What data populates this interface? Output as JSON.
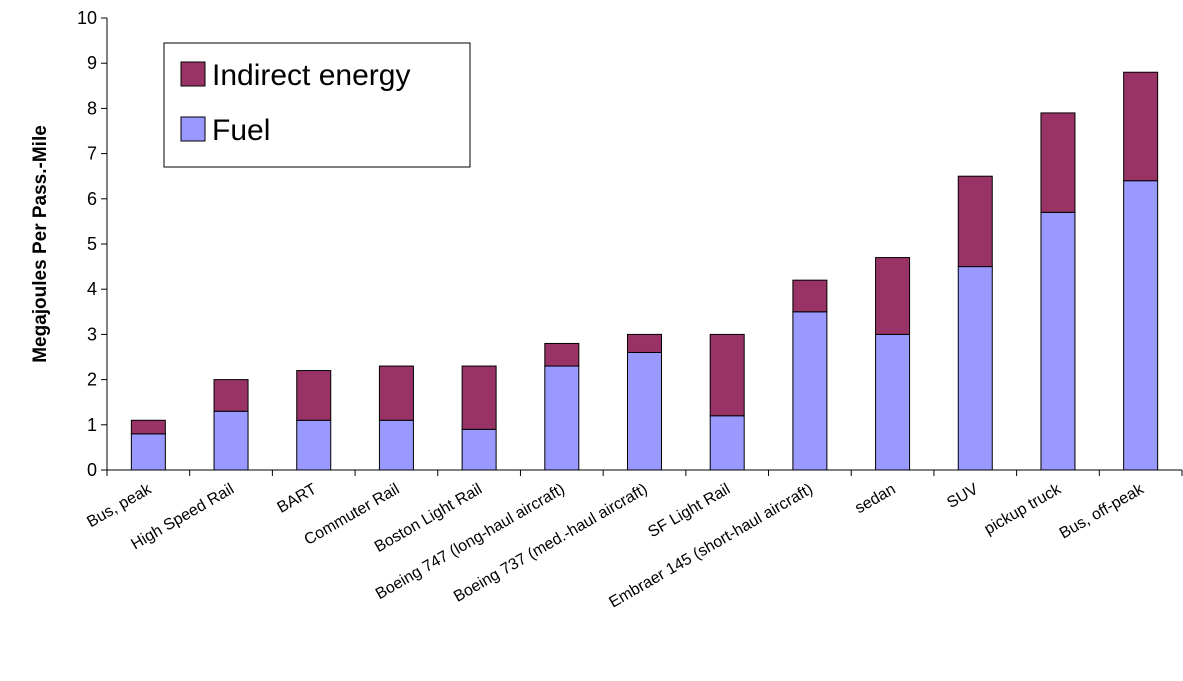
{
  "chart_data": {
    "type": "bar",
    "stacked": true,
    "ylabel": "Megajoules Per Pass.-Mile",
    "xlabel": "",
    "ylim": [
      0,
      10
    ],
    "yticks": [
      "0",
      "1",
      "2",
      "3",
      "4",
      "5",
      "6",
      "7",
      "8",
      "9",
      "10"
    ],
    "grid": false,
    "legend_position": "top-left",
    "categories": [
      "Bus, peak",
      "High Speed Rail",
      "BART",
      "Commuter Rail",
      "Boston Light Rail",
      "Boeing 747 (long-haul aircraft)",
      "Boeing 737 (med.-haul aircraft)",
      "SF Light Rail",
      "Embraer 145 (short-haul aircraft)",
      "sedan",
      "SUV",
      "pickup truck",
      "Bus, off-peak"
    ],
    "series": [
      {
        "name": "Fuel",
        "color": "#9999ff",
        "values": [
          0.8,
          1.3,
          1.1,
          1.1,
          0.9,
          2.3,
          2.6,
          1.2,
          3.5,
          3.0,
          4.5,
          5.7,
          6.4
        ]
      },
      {
        "name": "Indirect energy",
        "color": "#993366",
        "values": [
          0.3,
          0.7,
          1.1,
          1.2,
          1.4,
          0.5,
          0.4,
          1.8,
          0.7,
          1.7,
          2.0,
          2.2,
          2.4
        ]
      }
    ],
    "legend_order": [
      "Indirect energy",
      "Fuel"
    ]
  }
}
